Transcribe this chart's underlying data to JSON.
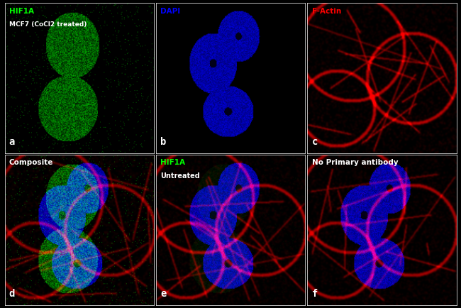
{
  "panel_labels": [
    "a",
    "b",
    "c",
    "d",
    "e",
    "f"
  ],
  "panel_titles": [
    [
      "HIF1A",
      "MCF7 (CoCl2 treated)"
    ],
    [
      "DAPI"
    ],
    [
      "F-Actin"
    ],
    [
      "Composite"
    ],
    [
      "HIF1A",
      "Untreated"
    ],
    [
      "No Primary antibody"
    ]
  ],
  "title_colors": [
    [
      "#00ff00",
      "#ffffff"
    ],
    [
      "#0000ff"
    ],
    [
      "#ff0000"
    ],
    [
      "#ffffff"
    ],
    [
      "#00ff00",
      "#ffffff"
    ],
    [
      "#ffffff"
    ]
  ],
  "background_color": "#000000",
  "grid_color": "#ffffff",
  "label_color": "#ffffff",
  "figsize": [
    6.5,
    4.34
  ],
  "dpi": 100,
  "nrows": 2,
  "ncols": 3
}
